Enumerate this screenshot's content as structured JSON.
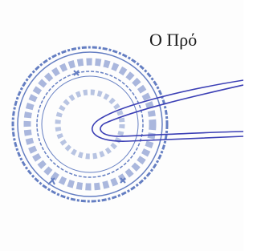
{
  "document": {
    "text": "Ο Πρό"
  }
}
